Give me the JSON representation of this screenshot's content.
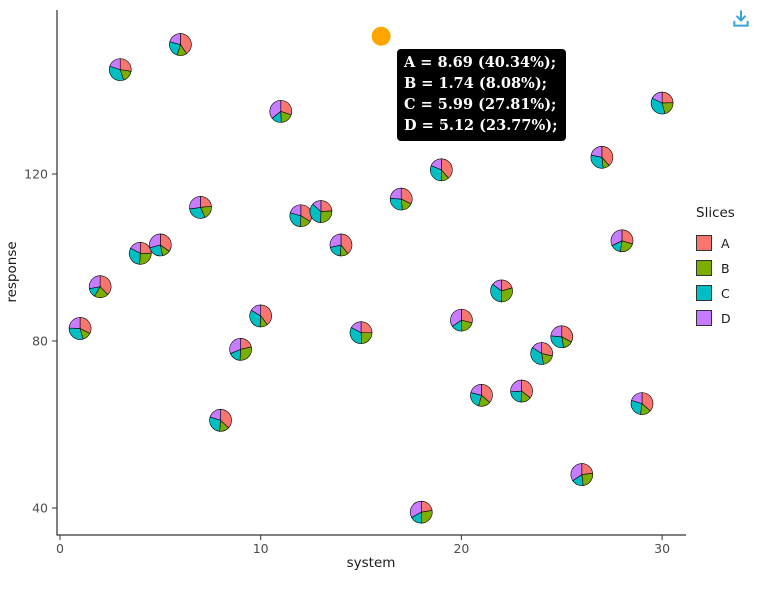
{
  "toolbar": {
    "download_icon": "download-arrow-into-tray",
    "download_color": "#38a2d9"
  },
  "chart_data": {
    "type": "scatter-pie",
    "title": "",
    "xlabel": "system",
    "ylabel": "response",
    "xlim": [
      0,
      31
    ],
    "ylim": [
      36,
      158
    ],
    "x_ticks": [
      0,
      10,
      20,
      30
    ],
    "y_ticks": [
      40,
      80,
      120
    ],
    "grid": false,
    "background": "#ffffff",
    "slice_order": [
      "A",
      "B",
      "C",
      "D"
    ],
    "slice_colors": {
      "A": "#F8766D",
      "B": "#7CAE00",
      "C": "#00BFC4",
      "D": "#C77CFF"
    },
    "legend": {
      "title": "Slices",
      "position": "right",
      "entries": [
        {
          "label": "A",
          "color": "#F8766D"
        },
        {
          "label": "B",
          "color": "#7CAE00"
        },
        {
          "label": "C",
          "color": "#00BFC4"
        },
        {
          "label": "D",
          "color": "#C77CFF"
        }
      ]
    },
    "highlight": {
      "x": 16,
      "y": 153,
      "color": "#FFA500"
    },
    "tooltip": {
      "bg": "#000000",
      "text_color": "#ffffff",
      "lines": [
        "A = 8.69 (40.34%);",
        "B = 1.74 (8.08%);",
        "C = 5.99 (27.81%);",
        "D = 5.12 (23.77%);"
      ]
    },
    "points": [
      {
        "x": 1,
        "y": 83,
        "values": {
          "A": 5.2,
          "B": 2.1,
          "C": 4.8,
          "D": 3.9
        }
      },
      {
        "x": 2,
        "y": 93,
        "values": {
          "A": 6.1,
          "B": 3.4,
          "C": 2.2,
          "D": 4.5
        }
      },
      {
        "x": 3,
        "y": 145,
        "values": {
          "A": 4.4,
          "B": 2.8,
          "C": 5.6,
          "D": 3.2
        }
      },
      {
        "x": 4,
        "y": 101,
        "values": {
          "A": 3.9,
          "B": 4.1,
          "C": 5.0,
          "D": 2.7
        }
      },
      {
        "x": 5,
        "y": 103,
        "values": {
          "A": 5.5,
          "B": 1.9,
          "C": 3.8,
          "D": 4.6
        }
      },
      {
        "x": 6,
        "y": 151,
        "values": {
          "A": 6.8,
          "B": 2.4,
          "C": 4.1,
          "D": 3.5
        }
      },
      {
        "x": 7,
        "y": 112,
        "values": {
          "A": 4.2,
          "B": 3.6,
          "C": 5.3,
          "D": 4.9
        }
      },
      {
        "x": 8,
        "y": 61,
        "values": {
          "A": 5.7,
          "B": 2.2,
          "C": 4.4,
          "D": 3.1
        }
      },
      {
        "x": 9,
        "y": 78,
        "values": {
          "A": 3.5,
          "B": 4.8,
          "C": 2.9,
          "D": 5.1
        }
      },
      {
        "x": 10,
        "y": 86,
        "values": {
          "A": 6.3,
          "B": 1.8,
          "C": 5.2,
          "D": 2.6
        }
      },
      {
        "x": 11,
        "y": 135,
        "values": {
          "A": 4.9,
          "B": 3.1,
          "C": 2.4,
          "D": 5.8
        }
      },
      {
        "x": 12,
        "y": 110,
        "values": {
          "A": 5.4,
          "B": 2.7,
          "C": 4.6,
          "D": 3.3
        }
      },
      {
        "x": 13,
        "y": 111,
        "values": {
          "A": 3.8,
          "B": 4.2,
          "C": 5.7,
          "D": 2.1
        }
      },
      {
        "x": 14,
        "y": 103,
        "values": {
          "A": 6.6,
          "B": 2.0,
          "C": 3.4,
          "D": 4.8
        }
      },
      {
        "x": 15,
        "y": 82,
        "values": {
          "A": 4.1,
          "B": 3.9,
          "C": 5.5,
          "D": 2.8
        }
      },
      {
        "x": 16,
        "y": 153,
        "hovered": true,
        "values": {
          "A": 8.69,
          "B": 1.74,
          "C": 5.99,
          "D": 5.12
        }
      },
      {
        "x": 17,
        "y": 114,
        "values": {
          "A": 5.0,
          "B": 2.5,
          "C": 4.3,
          "D": 3.7
        }
      },
      {
        "x": 18,
        "y": 39,
        "values": {
          "A": 3.6,
          "B": 4.4,
          "C": 2.7,
          "D": 5.3
        }
      },
      {
        "x": 19,
        "y": 121,
        "values": {
          "A": 6.2,
          "B": 1.7,
          "C": 5.1,
          "D": 3.0
        }
      },
      {
        "x": 20,
        "y": 85,
        "values": {
          "A": 4.7,
          "B": 3.3,
          "C": 2.6,
          "D": 5.6
        }
      },
      {
        "x": 21,
        "y": 67,
        "values": {
          "A": 5.9,
          "B": 2.9,
          "C": 4.0,
          "D": 3.4
        }
      },
      {
        "x": 22,
        "y": 92,
        "values": {
          "A": 3.2,
          "B": 4.6,
          "C": 5.4,
          "D": 2.3
        }
      },
      {
        "x": 23,
        "y": 68,
        "values": {
          "A": 6.0,
          "B": 2.6,
          "C": 3.9,
          "D": 4.4
        }
      },
      {
        "x": 24,
        "y": 77,
        "values": {
          "A": 4.5,
          "B": 3.0,
          "C": 5.8,
          "D": 2.5
        }
      },
      {
        "x": 25,
        "y": 81,
        "values": {
          "A": 5.3,
          "B": 2.3,
          "C": 4.7,
          "D": 3.8
        }
      },
      {
        "x": 26,
        "y": 48,
        "values": {
          "A": 3.7,
          "B": 4.0,
          "C": 2.8,
          "D": 5.5
        }
      },
      {
        "x": 27,
        "y": 124,
        "values": {
          "A": 6.4,
          "B": 1.6,
          "C": 5.0,
          "D": 3.6
        }
      },
      {
        "x": 28,
        "y": 104,
        "values": {
          "A": 4.8,
          "B": 3.7,
          "C": 2.5,
          "D": 5.2
        }
      },
      {
        "x": 29,
        "y": 65,
        "values": {
          "A": 5.6,
          "B": 2.4,
          "C": 4.2,
          "D": 3.1
        }
      },
      {
        "x": 30,
        "y": 137,
        "values": {
          "A": 4.0,
          "B": 3.5,
          "C": 5.9,
          "D": 2.9
        }
      }
    ]
  }
}
